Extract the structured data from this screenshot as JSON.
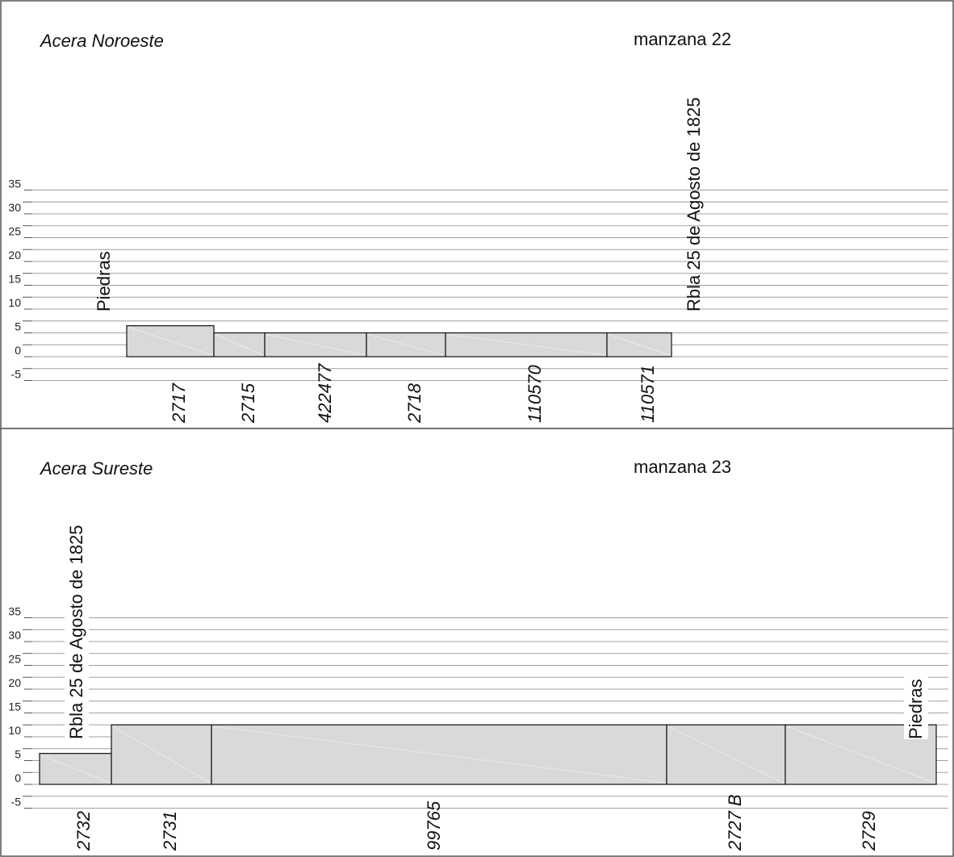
{
  "y_ticks": [
    "35",
    "30",
    "25",
    "20",
    "15",
    "10",
    "5",
    "0",
    "-5"
  ],
  "panels": [
    {
      "acera": "Acera Noroeste",
      "manzana": "manzana 22",
      "lots": [
        {
          "label": "2717",
          "height": 6.5
        },
        {
          "label": "2715",
          "height": 5
        },
        {
          "label": "422477",
          "height": 5
        },
        {
          "label": "2718",
          "height": 5
        },
        {
          "label": "110570",
          "height": 5
        },
        {
          "label": "110571",
          "height": 5
        }
      ],
      "side_labels": [
        {
          "text": "Piedras",
          "position": "left"
        },
        {
          "text": "Rbla 25 de Agosto de 1825",
          "position": "right"
        }
      ]
    },
    {
      "acera": "Acera Sureste",
      "manzana": "manzana 23",
      "lots": [
        {
          "label": "2732",
          "height": 6.5
        },
        {
          "label": "2731",
          "height": 12.5
        },
        {
          "label": "99765",
          "height": 12.5
        },
        {
          "label": "2727 B",
          "height": 12.5
        },
        {
          "label": "2729",
          "height": 12.5
        }
      ],
      "side_labels": [
        {
          "text": "Rbla 25 de Agosto de 1825",
          "position": "left"
        },
        {
          "text": "Piedras",
          "position": "right"
        }
      ]
    }
  ]
}
